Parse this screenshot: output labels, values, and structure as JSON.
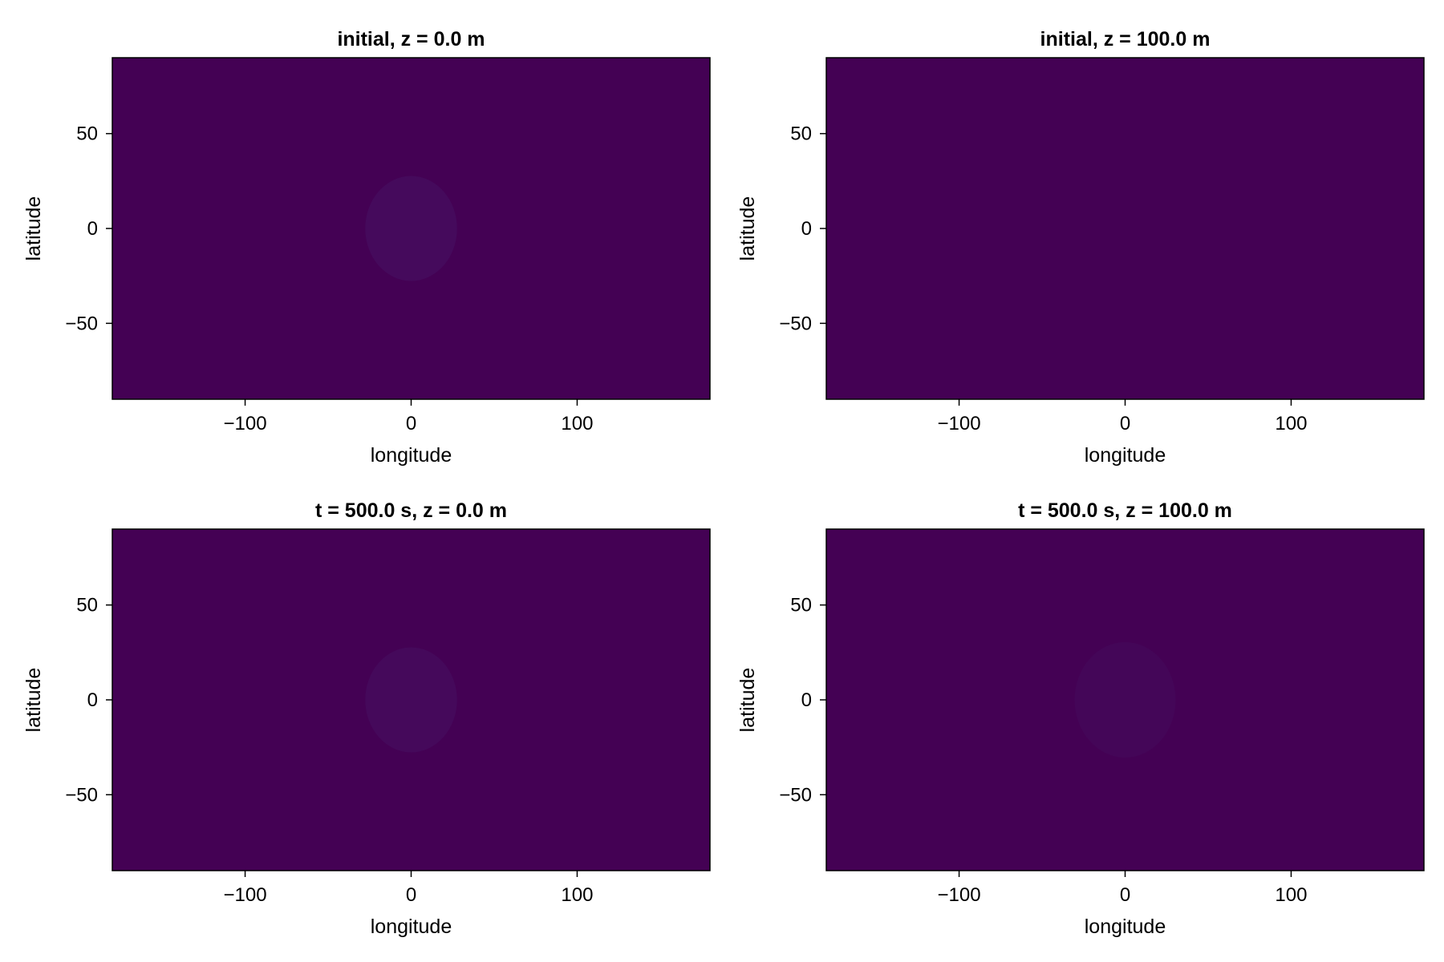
{
  "chart_data": [
    {
      "type": "heatmap",
      "title": "initial, z = 0.0 m",
      "xlabel": "longitude",
      "ylabel": "latitude",
      "xlim": [
        -180,
        180
      ],
      "ylim": [
        -90,
        90
      ],
      "xticks": [
        -100,
        0,
        100
      ],
      "xtick_labels": [
        "−100",
        "0",
        "100"
      ],
      "yticks": [
        -50,
        0,
        50
      ],
      "ytick_labels": [
        "−50",
        "0",
        "50"
      ],
      "colormap": "viridis",
      "grid": false,
      "blob": {
        "center_lon": 0,
        "center_lat": 0,
        "sigma_deg": 10,
        "peak": 1.0
      }
    },
    {
      "type": "heatmap",
      "title": "initial, z = 100.0 m",
      "xlabel": "longitude",
      "ylabel": "latitude",
      "xlim": [
        -180,
        180
      ],
      "ylim": [
        -90,
        90
      ],
      "xticks": [
        -100,
        0,
        100
      ],
      "xtick_labels": [
        "−100",
        "0",
        "100"
      ],
      "yticks": [
        -50,
        0,
        50
      ],
      "ytick_labels": [
        "−50",
        "0",
        "50"
      ],
      "colormap": "viridis",
      "grid": false,
      "blob": {
        "center_lon": 0,
        "center_lat": 0,
        "sigma_deg": 10,
        "peak": 0.0
      }
    },
    {
      "type": "heatmap",
      "title": "t = 500.0 s, z = 0.0 m",
      "xlabel": "longitude",
      "ylabel": "latitude",
      "xlim": [
        -180,
        180
      ],
      "ylim": [
        -90,
        90
      ],
      "xticks": [
        -100,
        0,
        100
      ],
      "xtick_labels": [
        "−100",
        "0",
        "100"
      ],
      "yticks": [
        -50,
        0,
        50
      ],
      "ytick_labels": [
        "−50",
        "0",
        "50"
      ],
      "colormap": "viridis",
      "grid": false,
      "blob": {
        "center_lon": 0,
        "center_lat": 0,
        "sigma_deg": 10,
        "peak": 0.88
      }
    },
    {
      "type": "heatmap",
      "title": "t = 500.0 s, z = 100.0 m",
      "xlabel": "longitude",
      "ylabel": "latitude",
      "xlim": [
        -180,
        180
      ],
      "ylim": [
        -90,
        90
      ],
      "xticks": [
        -100,
        0,
        100
      ],
      "xtick_labels": [
        "−100",
        "0",
        "100"
      ],
      "yticks": [
        -50,
        0,
        50
      ],
      "ytick_labels": [
        "−50",
        "0",
        "50"
      ],
      "colormap": "viridis",
      "grid": false,
      "blob": {
        "center_lon": 0,
        "center_lat": 0,
        "sigma_deg": 11,
        "peak": 0.55
      }
    }
  ]
}
